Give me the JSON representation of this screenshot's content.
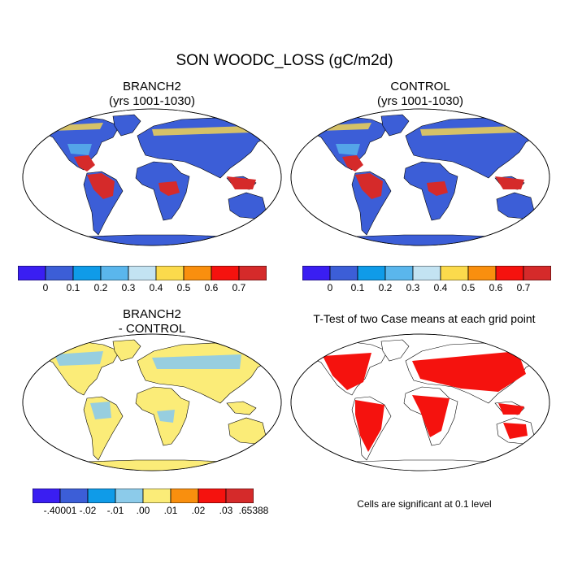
{
  "page": {
    "title": "SON WOODC_LOSS (gC/m2d)"
  },
  "panels": [
    {
      "id": "branch2",
      "title_line1": "BRANCH2",
      "title_line2": "(yrs 1001-1030)"
    },
    {
      "id": "control",
      "title_line1": "CONTROL",
      "title_line2": "(yrs 1001-1030)"
    },
    {
      "id": "diff",
      "title_line1": "BRANCH2",
      "title_line2": "- CONTROL"
    },
    {
      "id": "ttest",
      "title_line1": "T-Test of two Case means at each grid point",
      "title_line2": ""
    }
  ],
  "colorbars": {
    "field": {
      "colors": [
        "#3a1ef2",
        "#3c5ed7",
        "#0f9be8",
        "#5ab6ec",
        "#c3e3f2",
        "#fbda4c",
        "#f98f0e",
        "#f5120e",
        "#d52a2a"
      ],
      "labels": [
        "0",
        "0.1",
        "0.2",
        "0.3",
        "0.4",
        "0.5",
        "0.6",
        "0.7"
      ]
    },
    "diff": {
      "colors": [
        "#3a1ef2",
        "#3c5ed7",
        "#0f9be8",
        "#8ccbea",
        "#fbec78",
        "#f98f0e",
        "#f5120e",
        "#d52a2a"
      ],
      "labels": [
        "-.40001",
        "-.02",
        "-.01",
        ".00",
        ".01",
        ".02",
        ".03",
        ".65388"
      ]
    }
  },
  "map_colors": {
    "base": "#3c5ed7",
    "hot": "#d52a2a",
    "warm": "#fbda4c",
    "cool": "#5ab6ec",
    "diff_base": "#fbec78",
    "diff_cool": "#8ccbea",
    "sig": "#f5120e",
    "ocean": "#ffffff"
  },
  "ttest_note": "Cells are significant at 0.1 level"
}
